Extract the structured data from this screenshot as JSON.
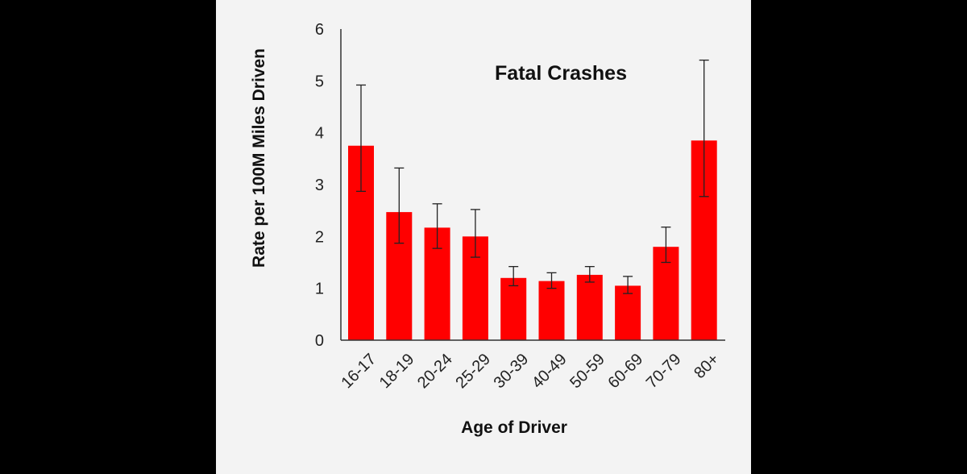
{
  "chart_data": {
    "type": "bar",
    "title": "Fatal Crashes",
    "xlabel": "Age of Driver",
    "ylabel": "Rate per 100M Miles Driven",
    "categories": [
      "16-17",
      "18-19",
      "20-24",
      "25-29",
      "30-39",
      "40-49",
      "50-59",
      "60-69",
      "70-79",
      "80+"
    ],
    "values": [
      3.75,
      2.47,
      2.17,
      2.0,
      1.2,
      1.14,
      1.26,
      1.05,
      1.8,
      3.85
    ],
    "error_upper": [
      4.92,
      3.32,
      2.63,
      2.52,
      1.42,
      1.3,
      1.42,
      1.23,
      2.18,
      5.4
    ],
    "error_lower": [
      2.87,
      1.87,
      1.77,
      1.6,
      1.05,
      1.0,
      1.12,
      0.9,
      1.5,
      2.77
    ],
    "ylim": [
      0,
      6
    ],
    "yticks": [
      "0",
      "1",
      "2",
      "3",
      "4",
      "5",
      "6"
    ],
    "grid": false,
    "legend": "none",
    "bar_color": "#ff0000",
    "background_color": "#f3f3f3"
  }
}
